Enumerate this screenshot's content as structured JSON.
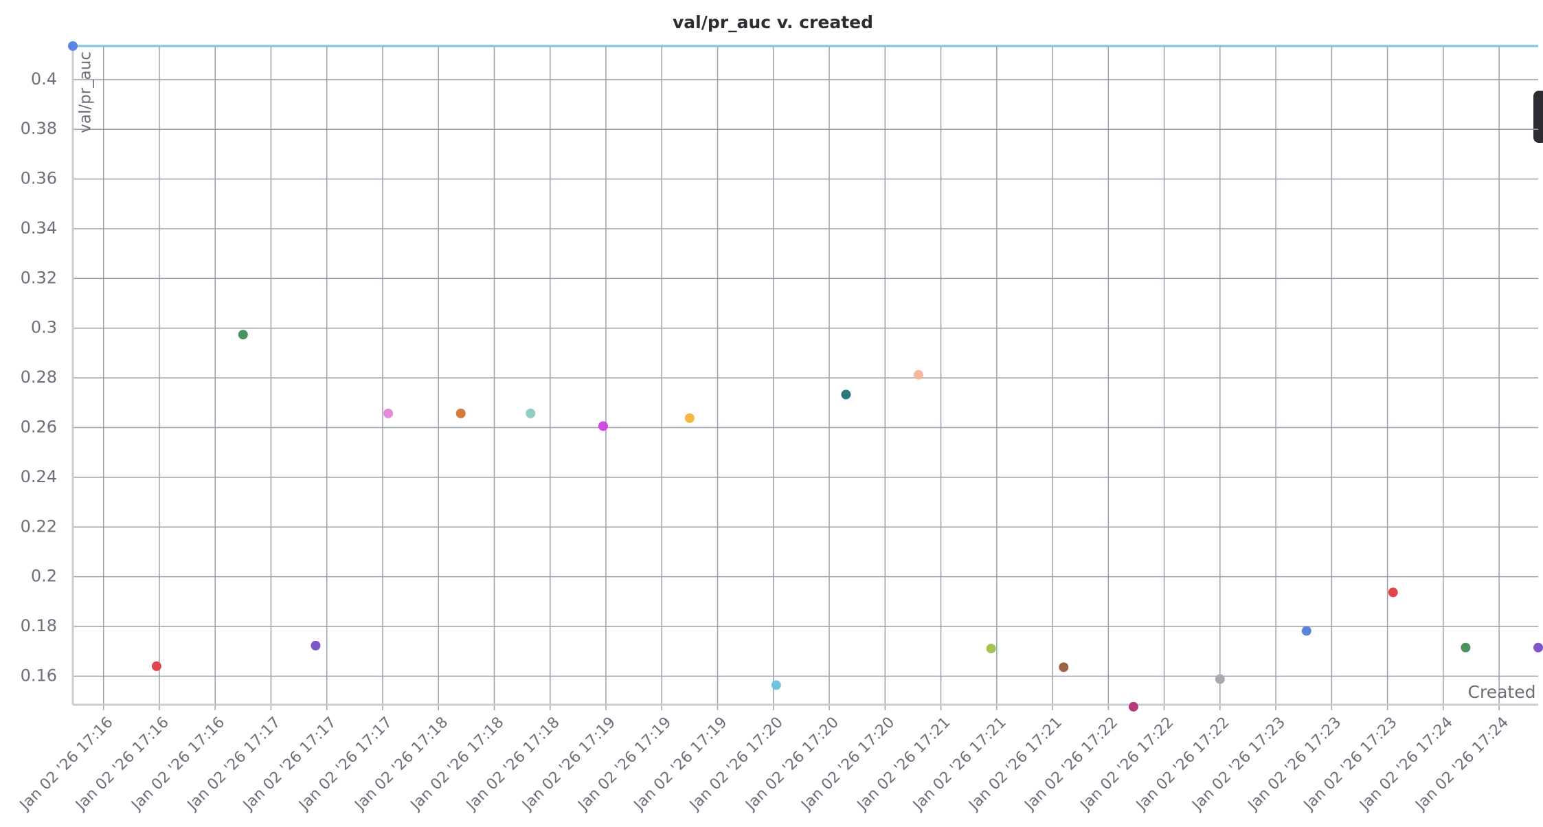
{
  "chart_data": {
    "type": "scatter",
    "title": "val/pr_auc v. created",
    "y_label": "val/pr_auc",
    "x_label": "Created",
    "xlim": [
      "2026-01-02T17:15:49",
      "2026-01-02T17:24:34"
    ],
    "ylim": [
      0.1485,
      0.4135
    ],
    "xticks": [
      {
        "value": "2026-01-02T17:16:00",
        "label": "Jan 02 '26 17:16"
      },
      {
        "value": "2026-01-02T17:16:20",
        "label": "Jan 02 '26 17:16"
      },
      {
        "value": "2026-01-02T17:16:40",
        "label": "Jan 02 '26 17:16"
      },
      {
        "value": "2026-01-02T17:17:00",
        "label": "Jan 02 '26 17:17"
      },
      {
        "value": "2026-01-02T17:17:20",
        "label": "Jan 02 '26 17:17"
      },
      {
        "value": "2026-01-02T17:17:40",
        "label": "Jan 02 '26 17:17"
      },
      {
        "value": "2026-01-02T17:18:00",
        "label": "Jan 02 '26 17:18"
      },
      {
        "value": "2026-01-02T17:18:20",
        "label": "Jan 02 '26 17:18"
      },
      {
        "value": "2026-01-02T17:18:40",
        "label": "Jan 02 '26 17:18"
      },
      {
        "value": "2026-01-02T17:19:00",
        "label": "Jan 02 '26 17:19"
      },
      {
        "value": "2026-01-02T17:19:20",
        "label": "Jan 02 '26 17:19"
      },
      {
        "value": "2026-01-02T17:19:40",
        "label": "Jan 02 '26 17:19"
      },
      {
        "value": "2026-01-02T17:20:00",
        "label": "Jan 02 '26 17:20"
      },
      {
        "value": "2026-01-02T17:20:20",
        "label": "Jan 02 '26 17:20"
      },
      {
        "value": "2026-01-02T17:20:40",
        "label": "Jan 02 '26 17:20"
      },
      {
        "value": "2026-01-02T17:21:00",
        "label": "Jan 02 '26 17:21"
      },
      {
        "value": "2026-01-02T17:21:20",
        "label": "Jan 02 '26 17:21"
      },
      {
        "value": "2026-01-02T17:21:40",
        "label": "Jan 02 '26 17:21"
      },
      {
        "value": "2026-01-02T17:22:00",
        "label": "Jan 02 '26 17:22"
      },
      {
        "value": "2026-01-02T17:22:20",
        "label": "Jan 02 '26 17:22"
      },
      {
        "value": "2026-01-02T17:22:40",
        "label": "Jan 02 '26 17:22"
      },
      {
        "value": "2026-01-02T17:23:00",
        "label": "Jan 02 '26 17:23"
      },
      {
        "value": "2026-01-02T17:23:20",
        "label": "Jan 02 '26 17:23"
      },
      {
        "value": "2026-01-02T17:23:40",
        "label": "Jan 02 '26 17:23"
      },
      {
        "value": "2026-01-02T17:24:00",
        "label": "Jan 02 '26 17:24"
      },
      {
        "value": "2026-01-02T17:24:20",
        "label": "Jan 02 '26 17:24"
      }
    ],
    "yticks": [
      0.16,
      0.18,
      0.2,
      0.22,
      0.24,
      0.26,
      0.28,
      0.3,
      0.32,
      0.34,
      0.36,
      0.38,
      0.4
    ],
    "grid": true,
    "points": [
      {
        "x": "2026-01-02T17:15:49",
        "y": 0.4135,
        "color": "#5b86e5"
      },
      {
        "x": "2026-01-02T17:16:19",
        "y": 0.164,
        "color": "#e0474c"
      },
      {
        "x": "2026-01-02T17:16:50",
        "y": 0.2974,
        "color": "#4a9460"
      },
      {
        "x": "2026-01-02T17:17:16",
        "y": 0.1723,
        "color": "#7e56c9"
      },
      {
        "x": "2026-01-02T17:17:42",
        "y": 0.2657,
        "color": "#e58ad8"
      },
      {
        "x": "2026-01-02T17:18:08",
        "y": 0.2657,
        "color": "#d67a3a"
      },
      {
        "x": "2026-01-02T17:18:33",
        "y": 0.2657,
        "color": "#8ecfc4"
      },
      {
        "x": "2026-01-02T17:18:59",
        "y": 0.2606,
        "color": "#d449e0"
      },
      {
        "x": "2026-01-02T17:19:30",
        "y": 0.2638,
        "color": "#f5b942"
      },
      {
        "x": "2026-01-02T17:20:01",
        "y": 0.1564,
        "color": "#6ec3e0"
      },
      {
        "x": "2026-01-02T17:20:26",
        "y": 0.2733,
        "color": "#2e7a78"
      },
      {
        "x": "2026-01-02T17:20:52",
        "y": 0.2812,
        "color": "#f5b89a"
      },
      {
        "x": "2026-01-02T17:21:18",
        "y": 0.1711,
        "color": "#a5c454"
      },
      {
        "x": "2026-01-02T17:21:44",
        "y": 0.1636,
        "color": "#9a6448"
      },
      {
        "x": "2026-01-02T17:22:09",
        "y": 0.1477,
        "color": "#b83a7e"
      },
      {
        "x": "2026-01-02T17:22:40",
        "y": 0.1588,
        "color": "#a7a9b0"
      },
      {
        "x": "2026-01-02T17:23:11",
        "y": 0.1782,
        "color": "#5a84d8"
      },
      {
        "x": "2026-01-02T17:23:42",
        "y": 0.1937,
        "color": "#e0474c"
      },
      {
        "x": "2026-01-02T17:24:08",
        "y": 0.1715,
        "color": "#4a9460"
      },
      {
        "x": "2026-01-02T17:24:34",
        "y": 0.1715,
        "color": "#7e56c9"
      }
    ]
  }
}
